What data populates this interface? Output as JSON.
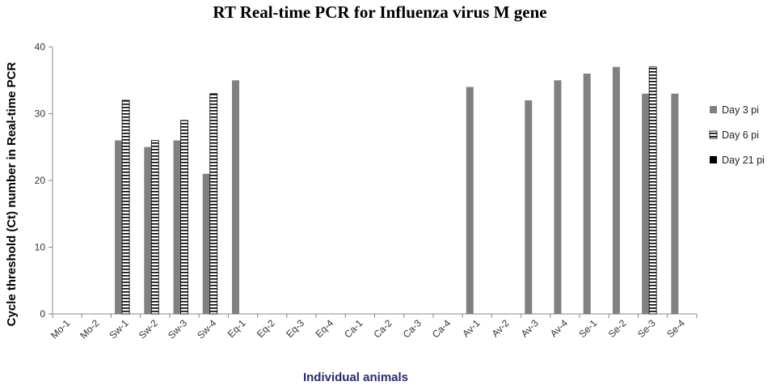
{
  "chart_data": {
    "type": "bar",
    "title": "RT Real-time PCR for Influenza virus  M gene",
    "xlabel": "Individual animals",
    "ylabel": "Cycle threshold (Ct) number in Real-time PCR",
    "ylim": [
      0,
      40
    ],
    "yticks": [
      "0",
      "10",
      "20",
      "30",
      "40"
    ],
    "grid": false,
    "legend_position": "right",
    "categories": [
      "Mo-1",
      "Mo-2",
      "Sw-1",
      "Sw-2",
      "Sw-3",
      "Sw-4",
      "Eq-1",
      "Eq-2",
      "Eq-3",
      "Eq-4",
      "Ca-1",
      "Ca-2",
      "Ca-3",
      "Ca-4",
      "Av-1",
      "Av-2",
      "Av-3",
      "Av-4",
      "Se-1",
      "Se-2",
      "Se-3",
      "Se-4"
    ],
    "series": [
      {
        "name": "Day 3 pi",
        "color": "#808080",
        "pattern": "solid",
        "values": [
          0,
          0,
          26,
          25,
          26,
          21,
          35,
          0,
          0,
          0,
          0,
          0,
          0,
          0,
          34,
          0,
          32,
          35,
          36,
          37,
          33,
          33
        ]
      },
      {
        "name": "Day 6 pi",
        "color": "#000000",
        "pattern": "horizontal-stripes",
        "values": [
          0,
          0,
          32,
          26,
          29,
          33,
          0,
          0,
          0,
          0,
          0,
          0,
          0,
          0,
          0,
          0,
          0,
          0,
          0,
          0,
          37,
          0
        ]
      },
      {
        "name": "Day 21 pi",
        "color": "#000000",
        "pattern": "solid",
        "values": [
          0,
          0,
          0,
          0,
          0,
          0,
          0,
          0,
          0,
          0,
          0,
          0,
          0,
          0,
          0,
          0,
          0,
          0,
          0,
          0,
          0,
          0
        ]
      }
    ],
    "axis_title_color": "#2b2b6b"
  }
}
